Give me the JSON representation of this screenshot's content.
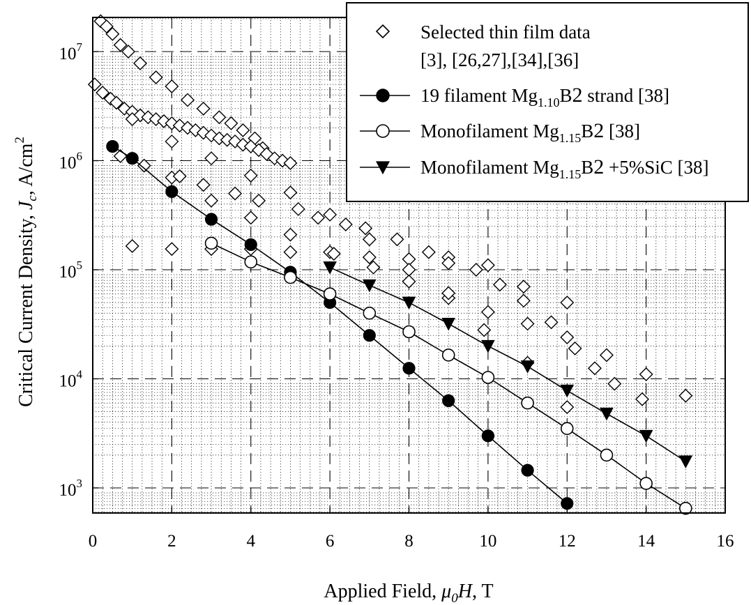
{
  "chart_data": {
    "type": "scatter",
    "xlabel": "Applied Field, μ0H, T",
    "xlabel_parts": {
      "main": "Applied Field, ",
      "mu": "μ",
      "sub": "0",
      "h": "H",
      "unit": ", T"
    },
    "ylabel": "Critical Current Density, Jc, A/cm2",
    "ylabel_parts": {
      "main": "Critical Current Density, ",
      "j": "J",
      "sub": "c",
      "unit": ", A/cm",
      "sup": "2"
    },
    "xlim": [
      0,
      16
    ],
    "ylim": [
      600,
      25000000
    ],
    "yscale": "log",
    "x_ticks": [
      "0",
      "2",
      "4",
      "6",
      "8",
      "10",
      "12",
      "14",
      "16"
    ],
    "y_ticks": [
      {
        "base": "10",
        "exp": "3"
      },
      {
        "base": "10",
        "exp": "4"
      },
      {
        "base": "10",
        "exp": "5"
      },
      {
        "base": "10",
        "exp": "6"
      },
      {
        "base": "10",
        "exp": "7"
      }
    ],
    "grid": true,
    "legend_position": "top-right",
    "series": [
      {
        "name": "Selected thin film data [3], [26,27],[34],[36]",
        "legend_lines": [
          "Selected thin film data",
          "[3], [26,27],[34],[36]"
        ],
        "marker": "diamond-open",
        "connected": false,
        "points": [
          [
            0.2,
            19000000
          ],
          [
            0.35,
            17000000
          ],
          [
            0.5,
            14500000
          ],
          [
            0.7,
            11500000
          ],
          [
            0.9,
            10000000
          ],
          [
            1.2,
            7800000
          ],
          [
            1.6,
            5800000
          ],
          [
            2.0,
            4800000
          ],
          [
            2.4,
            3600000
          ],
          [
            2.8,
            3000000
          ],
          [
            3.2,
            2500000
          ],
          [
            3.5,
            2200000
          ],
          [
            3.8,
            1900000
          ],
          [
            4.1,
            1600000
          ],
          [
            4.3,
            1300000
          ],
          [
            0.05,
            5000000
          ],
          [
            0.25,
            4200000
          ],
          [
            0.45,
            3700000
          ],
          [
            0.6,
            3400000
          ],
          [
            0.8,
            3000000
          ],
          [
            1.0,
            2800000
          ],
          [
            1.2,
            2600000
          ],
          [
            1.4,
            2500000
          ],
          [
            1.6,
            2400000
          ],
          [
            1.8,
            2300000
          ],
          [
            2.0,
            2200000
          ],
          [
            2.2,
            2100000
          ],
          [
            2.4,
            2000000
          ],
          [
            2.6,
            1900000
          ],
          [
            2.8,
            1800000
          ],
          [
            3.0,
            1700000
          ],
          [
            3.2,
            1600000
          ],
          [
            3.4,
            1550000
          ],
          [
            3.6,
            1500000
          ],
          [
            3.8,
            1400000
          ],
          [
            4.0,
            1350000
          ],
          [
            4.2,
            1250000
          ],
          [
            4.4,
            1150000
          ],
          [
            4.6,
            1050000
          ],
          [
            4.8,
            1000000
          ],
          [
            5.0,
            950000
          ],
          [
            1.0,
            2400000
          ],
          [
            2.0,
            1500000
          ],
          [
            3.0,
            1050000
          ],
          [
            0.7,
            1100000
          ],
          [
            1.3,
            900000
          ],
          [
            2.0,
            700000
          ],
          [
            2.2,
            720000
          ],
          [
            2.8,
            600000
          ],
          [
            3.0,
            430000
          ],
          [
            3.6,
            500000
          ],
          [
            4.0,
            730000
          ],
          [
            4.0,
            300000
          ],
          [
            4.2,
            430000
          ],
          [
            5.0,
            510000
          ],
          [
            5.2,
            360000
          ],
          [
            5.0,
            210000
          ],
          [
            5.7,
            300000
          ],
          [
            6.0,
            320000
          ],
          [
            6.4,
            260000
          ],
          [
            6.9,
            240000
          ],
          [
            7.0,
            190000
          ],
          [
            7.7,
            190000
          ],
          [
            8.0,
            125000
          ],
          [
            8.5,
            145000
          ],
          [
            9.0,
            130000
          ],
          [
            9.0,
            115000
          ],
          [
            9.7,
            100000
          ],
          [
            10.0,
            110000
          ],
          [
            10.3,
            73000
          ],
          [
            10.9,
            70000
          ],
          [
            11.0,
            32000
          ],
          [
            11.6,
            33000
          ],
          [
            12.0,
            50000
          ],
          [
            12.2,
            19000
          ],
          [
            1.0,
            165000
          ],
          [
            2.0,
            155000
          ],
          [
            3.0,
            155000
          ],
          [
            4.0,
            155000
          ],
          [
            5.0,
            145000
          ],
          [
            6.0,
            145000
          ],
          [
            6.1,
            140000
          ],
          [
            7.0,
            130000
          ],
          [
            7.1,
            105000
          ],
          [
            8.0,
            100000
          ],
          [
            8.0,
            78000
          ],
          [
            9.0,
            55000
          ],
          [
            9.0,
            61000
          ],
          [
            10.0,
            41000
          ],
          [
            9.9,
            28000
          ],
          [
            10.9,
            52000
          ],
          [
            11.0,
            14000
          ],
          [
            12.0,
            24000
          ],
          [
            12.0,
            5500
          ],
          [
            12.7,
            12500
          ],
          [
            13.0,
            16500
          ],
          [
            13.2,
            9000
          ],
          [
            14.0,
            11000
          ],
          [
            13.9,
            6500
          ],
          [
            15.0,
            7000
          ]
        ]
      },
      {
        "name": "19 filament Mg1.10B2 strand [38]",
        "legend_parts": {
          "a": "19 filament Mg",
          "sub": "1.10",
          "b": "B",
          "sub2": "2",
          "c": " strand [38]"
        },
        "marker": "circle-filled",
        "connected": true,
        "points": [
          [
            0.5,
            1350000
          ],
          [
            1.0,
            1050000
          ],
          [
            2.0,
            520000
          ],
          [
            3.0,
            290000
          ],
          [
            4.0,
            170000
          ],
          [
            5.0,
            95000
          ],
          [
            6.0,
            50000
          ],
          [
            7.0,
            25000
          ],
          [
            8.0,
            12500
          ],
          [
            9.0,
            6300
          ],
          [
            10.0,
            3000
          ],
          [
            11.0,
            1450
          ],
          [
            12.0,
            720
          ]
        ]
      },
      {
        "name": "Monofilament Mg1.15B2 [38]",
        "legend_parts": {
          "a": "Monofilament Mg",
          "sub": "1.15",
          "b": "B",
          "sub2": "2",
          "c": " [38]"
        },
        "marker": "circle-open",
        "connected": true,
        "points": [
          [
            3.0,
            175000
          ],
          [
            4.0,
            118000
          ],
          [
            5.0,
            85000
          ],
          [
            6.0,
            60000
          ],
          [
            7.0,
            40000
          ],
          [
            8.0,
            27000
          ],
          [
            9.0,
            16500
          ],
          [
            10.0,
            10300
          ],
          [
            11.0,
            6000
          ],
          [
            12.0,
            3500
          ],
          [
            13.0,
            2000
          ],
          [
            14.0,
            1100
          ],
          [
            15.0,
            650
          ]
        ]
      },
      {
        "name": "Monofilament Mg1.15B2 +5%SiC [38]",
        "legend_parts": {
          "a": "Monofilament Mg",
          "sub": "1.15",
          "b": "B",
          "sub2": "2",
          "c": " +5%SiC [38]"
        },
        "marker": "triangle-down-filled",
        "connected": true,
        "points": [
          [
            6.0,
            105000
          ],
          [
            7.0,
            72000
          ],
          [
            8.0,
            50000
          ],
          [
            9.0,
            32000
          ],
          [
            10.0,
            20000
          ],
          [
            11.0,
            13000
          ],
          [
            12.0,
            7800
          ],
          [
            13.0,
            4800
          ],
          [
            14.0,
            3000
          ],
          [
            15.0,
            1750
          ]
        ]
      }
    ]
  }
}
